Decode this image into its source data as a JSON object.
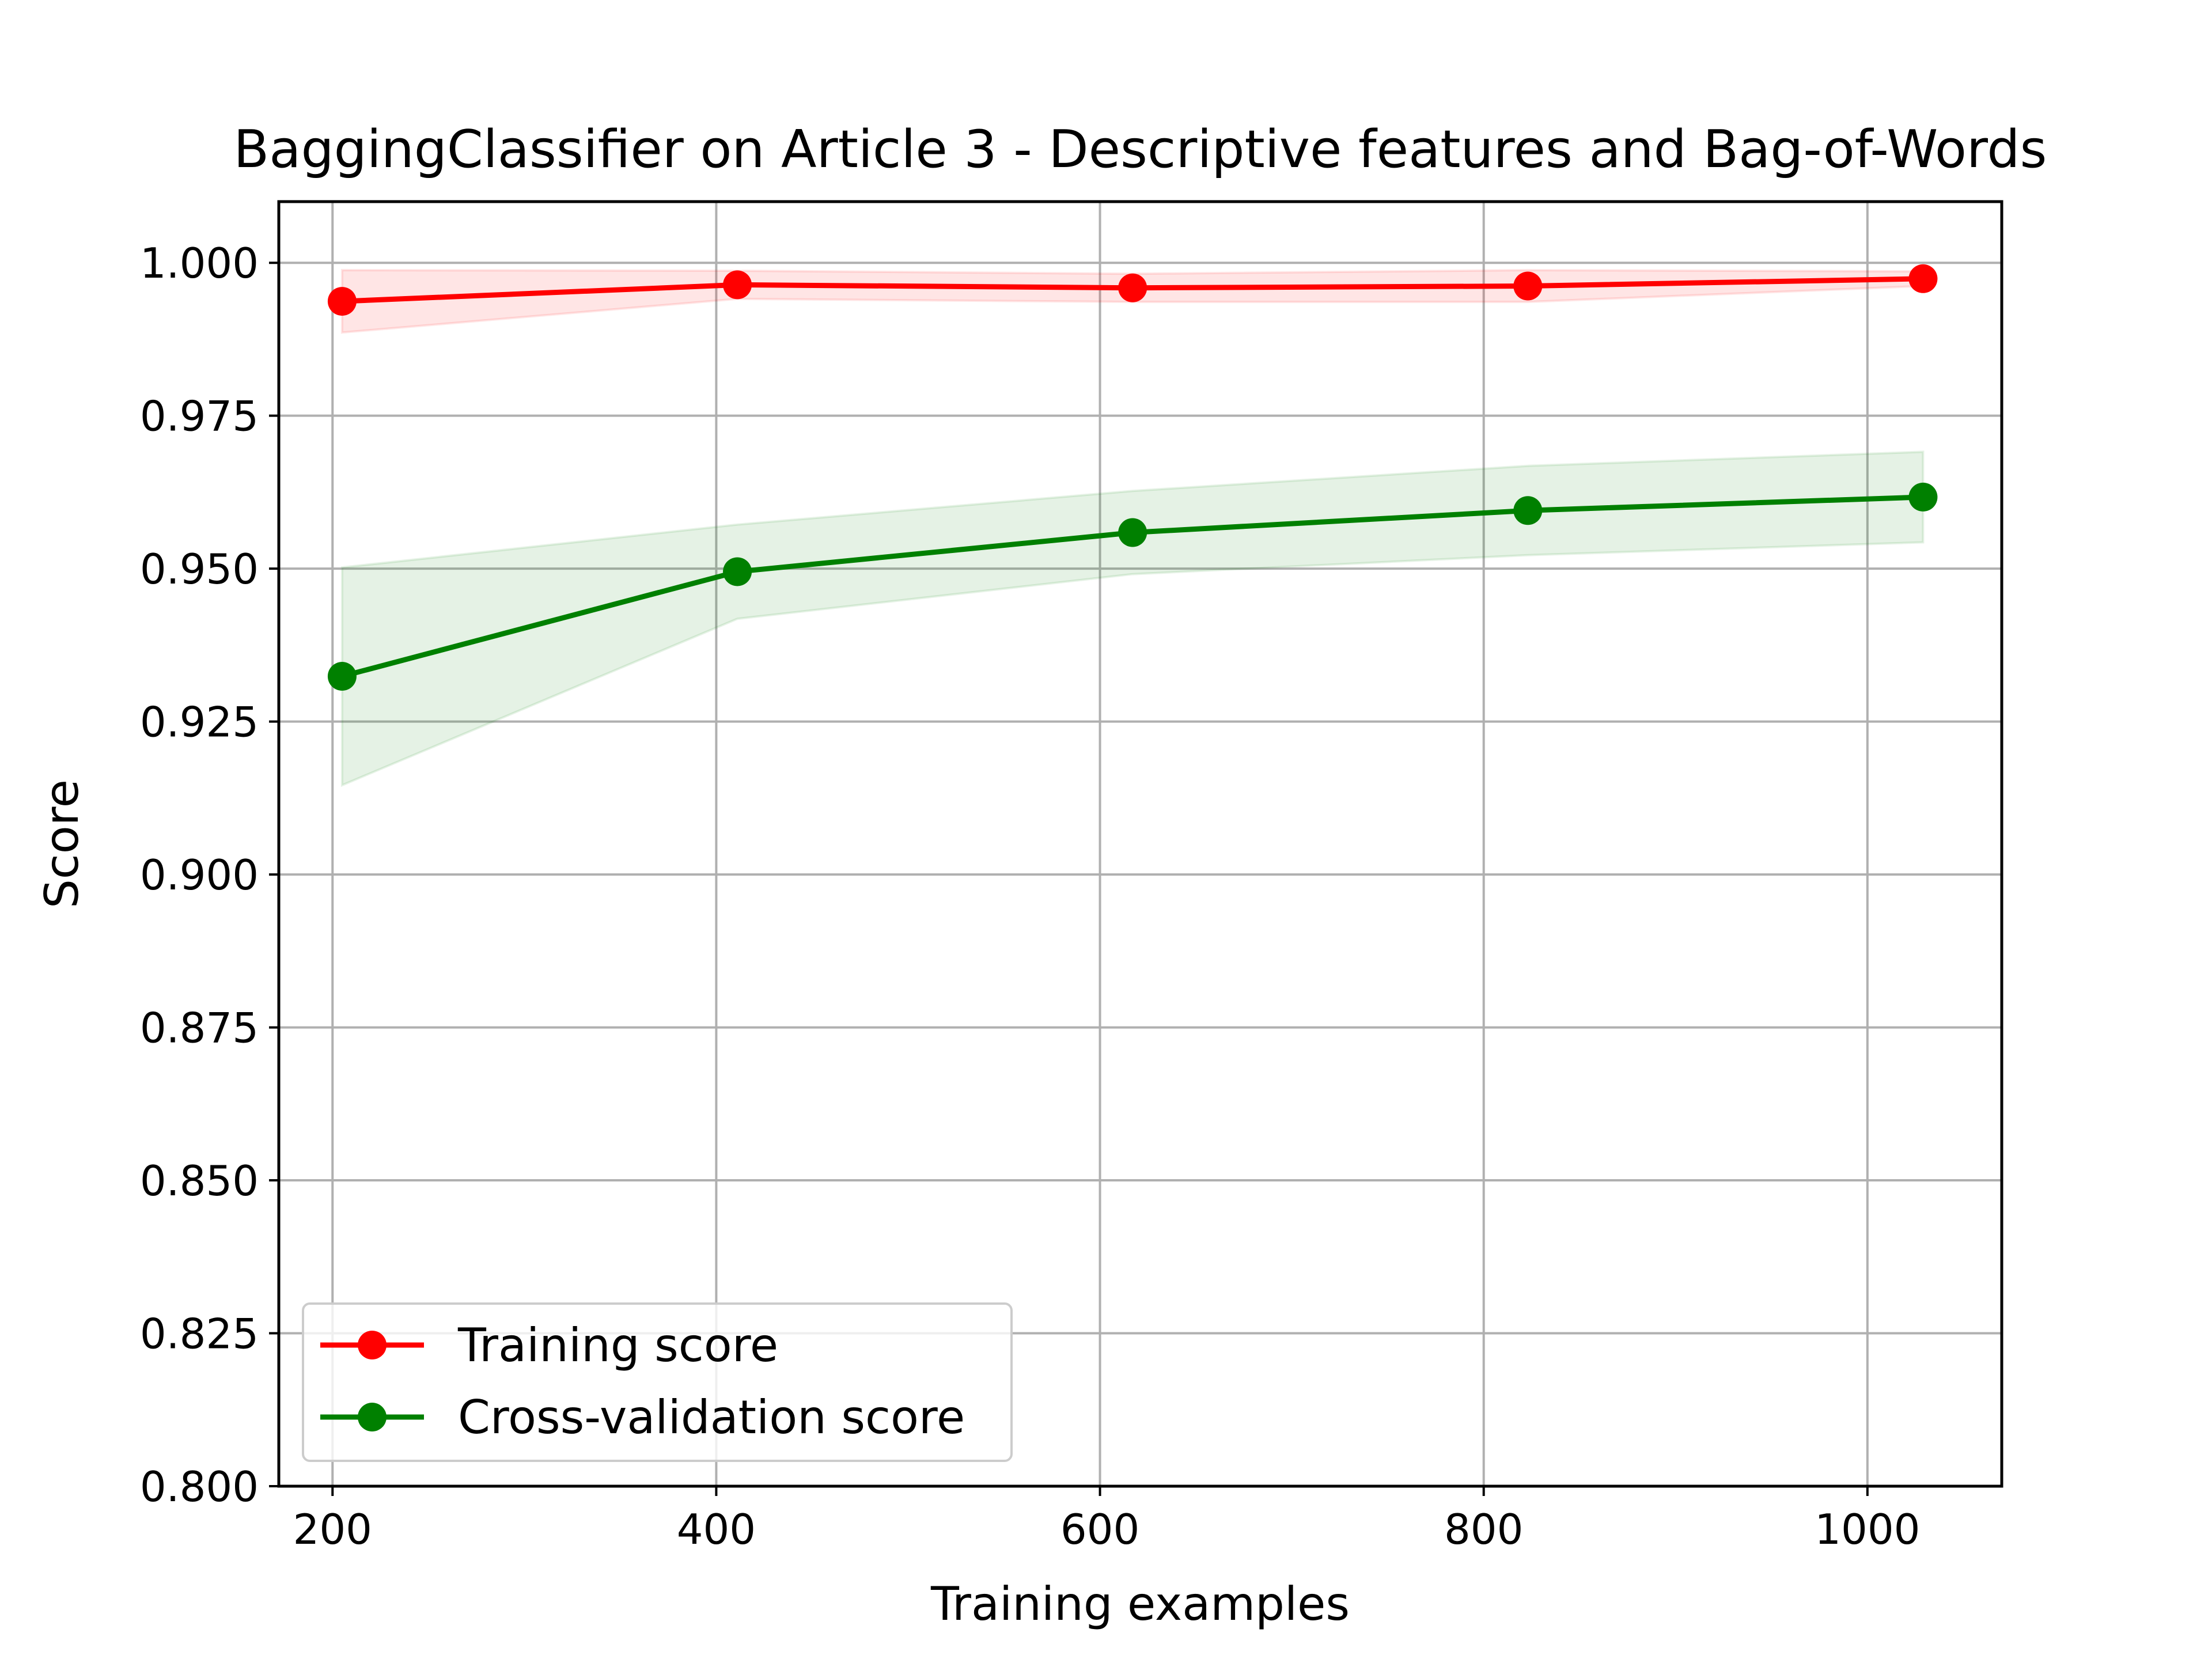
{
  "chart_data": {
    "type": "line",
    "title": "BaggingClassifier on Article 3 - Descriptive features and Bag-of-Words",
    "xlabel": "Training examples",
    "ylabel": "Score",
    "xlim": [
      172,
      1070
    ],
    "ylim": [
      0.8,
      1.01
    ],
    "x_ticks": [
      200,
      400,
      600,
      800,
      1000
    ],
    "y_ticks": [
      0.8,
      0.825,
      0.85,
      0.875,
      0.9,
      0.925,
      0.95,
      0.975,
      1.0
    ],
    "x_tick_labels": [
      "200",
      "400",
      "600",
      "800",
      "1000"
    ],
    "y_tick_labels": [
      "0.800",
      "0.825",
      "0.850",
      "0.875",
      "0.900",
      "0.925",
      "0.950",
      "0.975",
      "1.000"
    ],
    "grid": true,
    "legend_position": "lower-left",
    "x": [
      205,
      411,
      617,
      823,
      1029
    ],
    "series": [
      {
        "name": "Training score",
        "color": "#ff0000",
        "values": [
          0.9937,
          0.9964,
          0.9959,
          0.9962,
          0.9974
        ],
        "band_lower": [
          0.9886,
          0.9941,
          0.9936,
          0.9936,
          0.9962
        ],
        "band_upper": [
          0.9988,
          0.9987,
          0.9982,
          0.9988,
          0.9986
        ]
      },
      {
        "name": "Cross-validation score",
        "color": "#008000",
        "values": [
          0.9324,
          0.9495,
          0.9559,
          0.9595,
          0.9617
        ],
        "band_lower": [
          0.9146,
          0.9418,
          0.9491,
          0.9522,
          0.9543
        ],
        "band_upper": [
          0.9502,
          0.9572,
          0.9627,
          0.9668,
          0.9691
        ]
      }
    ]
  }
}
